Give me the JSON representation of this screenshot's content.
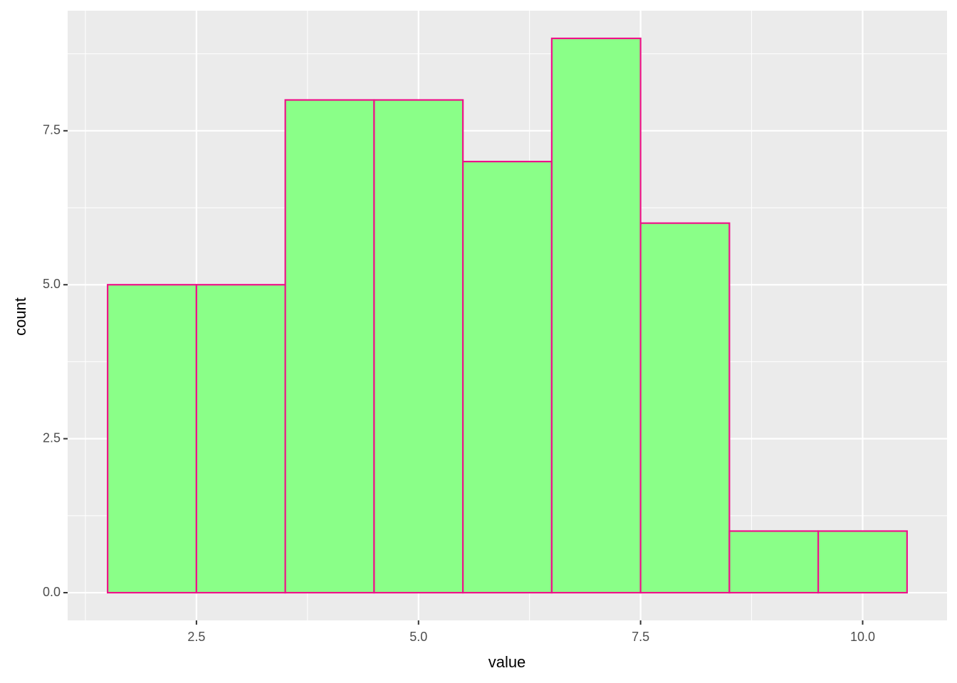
{
  "chart_data": {
    "type": "histogram",
    "x_label": "value",
    "y_label": "count",
    "bins": [
      1.5,
      2.5,
      3.5,
      4.5,
      5.5,
      6.5,
      7.5,
      8.5,
      9.5,
      10.5
    ],
    "values": [
      5,
      5,
      8,
      8,
      7,
      9,
      6,
      1,
      1
    ],
    "color": "#8aff88",
    "edgecolor": "#ee1289",
    "xlim": [
      1.05,
      10.95
    ],
    "ylim": [
      -0.45,
      9.45
    ],
    "xticks": [
      2.5,
      {
        "value": 5,
        "label": "5.0"
      },
      7.5,
      {
        "value": 10,
        "label": "10.0"
      }
    ],
    "yticks": [
      {
        "value": 0,
        "label": "0.0"
      },
      2.5,
      {
        "value": 5,
        "label": "5.0"
      },
      7.5
    ],
    "grid": true
  }
}
